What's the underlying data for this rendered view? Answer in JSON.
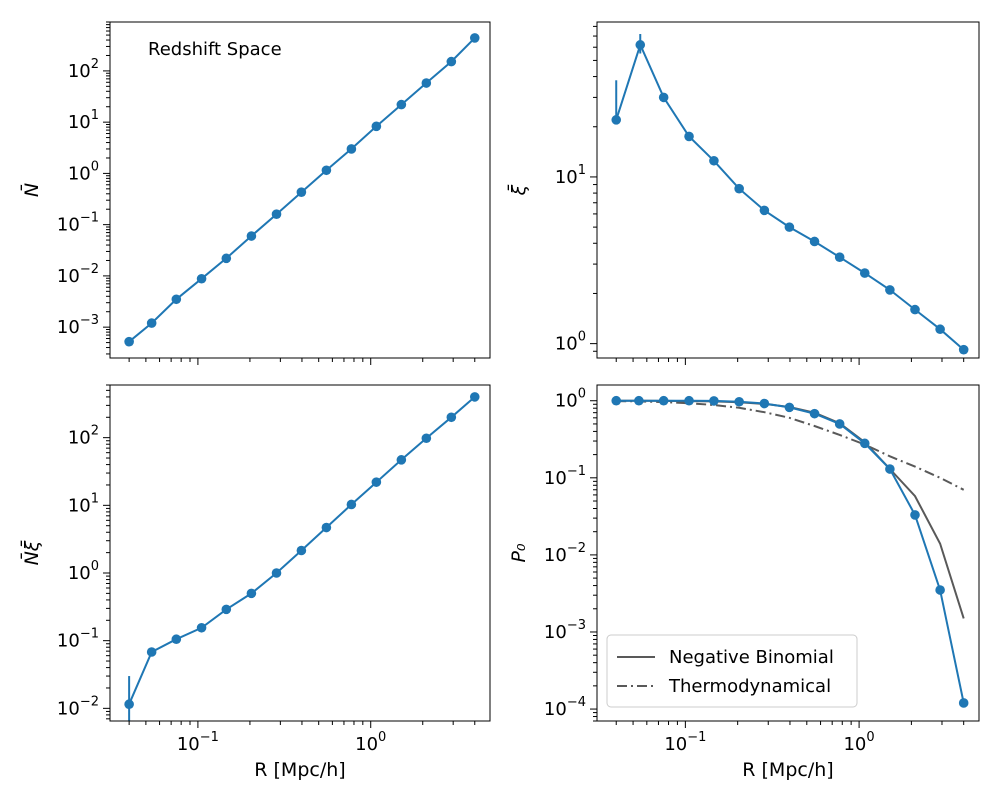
{
  "colors": {
    "series": "#1f77b4",
    "model": "#595959"
  },
  "chart_data": [
    {
      "id": "nbar",
      "type": "line",
      "log_x": true,
      "log_y": true,
      "xlim": [
        0.031,
        4.9
      ],
      "ylim": [
        0.00025,
        900
      ],
      "yticks": [
        0.001,
        0.01,
        0.1,
        1,
        10,
        100
      ],
      "ytick_labels": [
        {
          "base": "10",
          "exp": "−3"
        },
        {
          "base": "10",
          "exp": "−2"
        },
        {
          "base": "10",
          "exp": "−1"
        },
        {
          "base": "10",
          "exp": "0"
        },
        {
          "base": "10",
          "exp": "1"
        },
        {
          "base": "10",
          "exp": "2"
        }
      ],
      "xticks": [],
      "xtick_labels": [],
      "ylabel": "N̄",
      "xlabel": "",
      "annotation": "Redshift Space",
      "series": [
        {
          "color": "#1f77b4",
          "markers": true,
          "x": [
            0.04,
            0.054,
            0.075,
            0.105,
            0.146,
            0.204,
            0.285,
            0.397,
            0.554,
            0.773,
            1.078,
            1.504,
            2.098,
            2.927,
            4.0
          ],
          "y": [
            0.00052,
            0.0012,
            0.0035,
            0.0088,
            0.022,
            0.06,
            0.16,
            0.43,
            1.15,
            3.0,
            8.3,
            22,
            58,
            152,
            440
          ]
        }
      ],
      "legend": []
    },
    {
      "id": "xibar",
      "type": "line",
      "log_x": true,
      "log_y": true,
      "xlim": [
        0.031,
        4.9
      ],
      "ylim": [
        0.82,
        85
      ],
      "yticks": [
        1,
        10
      ],
      "ytick_labels": [
        {
          "base": "10",
          "exp": "0"
        },
        {
          "base": "10",
          "exp": "1"
        }
      ],
      "xticks": [],
      "xtick_labels": [],
      "ylabel": "ξ̄",
      "xlabel": "",
      "annotation": "",
      "series": [
        {
          "color": "#1f77b4",
          "markers": true,
          "x": [
            0.04,
            0.055,
            0.075,
            0.105,
            0.146,
            0.204,
            0.285,
            0.397,
            0.554,
            0.773,
            1.078,
            1.504,
            2.098,
            2.927,
            4.0
          ],
          "y": [
            22,
            62,
            30,
            17.5,
            12.5,
            8.5,
            6.3,
            5.0,
            4.1,
            3.3,
            2.65,
            2.1,
            1.6,
            1.22,
            0.92
          ],
          "yerr_low": [
            21.9,
            55,
            0,
            0,
            0,
            0,
            0,
            0,
            0,
            0,
            0,
            0,
            0,
            0,
            0
          ],
          "yerr_high": [
            38,
            72,
            0,
            0,
            0,
            0,
            0,
            0,
            0,
            0,
            0,
            0,
            0,
            0,
            0
          ]
        }
      ],
      "legend": []
    },
    {
      "id": "nxi",
      "type": "line",
      "log_x": true,
      "log_y": true,
      "xlim": [
        0.031,
        4.9
      ],
      "ylim": [
        0.0065,
        600
      ],
      "yticks": [
        0.01,
        0.1,
        1,
        10,
        100
      ],
      "ytick_labels": [
        {
          "base": "10",
          "exp": "−2"
        },
        {
          "base": "10",
          "exp": "−1"
        },
        {
          "base": "10",
          "exp": "0"
        },
        {
          "base": "10",
          "exp": "1"
        },
        {
          "base": "10",
          "exp": "2"
        }
      ],
      "xticks": [
        0.1,
        1
      ],
      "xtick_labels": [
        {
          "base": "10",
          "exp": "−1"
        },
        {
          "base": "10",
          "exp": "0"
        }
      ],
      "ylabel": "N̄ξ̄",
      "xlabel": "R [Mpc/h]",
      "annotation": "",
      "series": [
        {
          "color": "#1f77b4",
          "markers": true,
          "x": [
            0.04,
            0.054,
            0.075,
            0.105,
            0.146,
            0.204,
            0.285,
            0.397,
            0.554,
            0.773,
            1.078,
            1.504,
            2.098,
            2.927,
            4.0
          ],
          "y": [
            0.0115,
            0.068,
            0.105,
            0.155,
            0.29,
            0.5,
            1.0,
            2.15,
            4.7,
            10.3,
            22,
            47,
            98,
            200,
            400
          ],
          "yerr_low": [
            0.0065,
            0,
            0,
            0,
            0,
            0,
            0,
            0,
            0,
            0,
            0,
            0,
            0,
            0,
            0
          ],
          "yerr_high": [
            0.03,
            0,
            0,
            0,
            0,
            0,
            0,
            0,
            0,
            0,
            0,
            0,
            0,
            0,
            0
          ]
        }
      ],
      "legend": []
    },
    {
      "id": "p0",
      "type": "line",
      "log_x": true,
      "log_y": true,
      "xlim": [
        0.031,
        4.9
      ],
      "ylim": [
        7e-05,
        1.6
      ],
      "yticks": [
        0.0001,
        0.001,
        0.01,
        0.1,
        1
      ],
      "ytick_labels": [
        {
          "base": "10",
          "exp": "−4"
        },
        {
          "base": "10",
          "exp": "−3"
        },
        {
          "base": "10",
          "exp": "−2"
        },
        {
          "base": "10",
          "exp": "−1"
        },
        {
          "base": "10",
          "exp": "0"
        }
      ],
      "xticks": [
        0.1,
        1
      ],
      "xtick_labels": [
        {
          "base": "10",
          "exp": "−1"
        },
        {
          "base": "10",
          "exp": "0"
        }
      ],
      "ylabel": "P₀",
      "xlabel": "R [Mpc/h]",
      "annotation": "",
      "series": [
        {
          "name": "Negative Binomial",
          "color": "#595959",
          "markers": false,
          "dash": "",
          "x": [
            0.04,
            0.054,
            0.075,
            0.105,
            0.146,
            0.204,
            0.285,
            0.397,
            0.554,
            0.773,
            1.078,
            1.504,
            2.098,
            2.927,
            4.0
          ],
          "y": [
            1.0,
            1.0,
            0.995,
            0.99,
            0.98,
            0.955,
            0.91,
            0.83,
            0.7,
            0.51,
            0.29,
            0.13,
            0.058,
            0.014,
            0.0015
          ]
        },
        {
          "name": "Thermodynamical",
          "color": "#595959",
          "markers": false,
          "dash": "10,4,2,4",
          "x": [
            0.04,
            0.054,
            0.075,
            0.105,
            0.146,
            0.204,
            0.285,
            0.397,
            0.554,
            0.773,
            1.078,
            1.504,
            2.098,
            2.927,
            4.0
          ],
          "y": [
            0.99,
            0.98,
            0.96,
            0.93,
            0.88,
            0.81,
            0.71,
            0.6,
            0.47,
            0.36,
            0.27,
            0.19,
            0.14,
            0.1,
            0.07
          ]
        },
        {
          "color": "#1f77b4",
          "markers": true,
          "dash": "",
          "x": [
            0.04,
            0.054,
            0.075,
            0.105,
            0.146,
            0.204,
            0.285,
            0.397,
            0.554,
            0.773,
            1.078,
            1.504,
            2.098,
            2.927,
            4.0
          ],
          "y": [
            1.0,
            1.0,
            1.0,
            1.0,
            0.995,
            0.97,
            0.92,
            0.82,
            0.68,
            0.5,
            0.28,
            0.13,
            0.033,
            0.0035,
            0.00012
          ]
        }
      ],
      "legend": [
        {
          "label": "Negative Binomial",
          "color": "#595959",
          "dash": ""
        },
        {
          "label": "Thermodynamical",
          "color": "#595959",
          "dash": "10,4,2,4"
        }
      ]
    }
  ]
}
